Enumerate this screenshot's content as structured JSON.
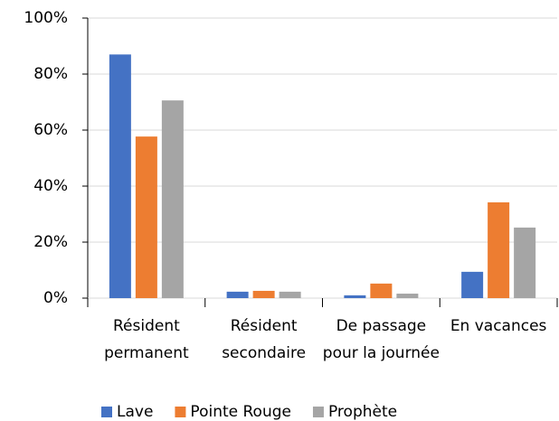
{
  "chart_data": {
    "type": "bar",
    "categories": [
      "Résident permanent",
      "Résident secondaire",
      "De passage pour la journée",
      "En vacances"
    ],
    "series": [
      {
        "name": "Lave",
        "color": "#4472c4",
        "values": [
          87,
          2.3,
          1,
          9.4
        ]
      },
      {
        "name": "Pointe Rouge",
        "color": "#ed7d31",
        "values": [
          57.7,
          2.6,
          5.2,
          34.2
        ]
      },
      {
        "name": "Prophète",
        "color": "#a5a5a5",
        "values": [
          70.6,
          2.3,
          1.6,
          25.2
        ]
      }
    ],
    "ylim": [
      0,
      100
    ],
    "yticks": [
      {
        "value": 0,
        "label": "0%"
      },
      {
        "value": 20,
        "label": "20%"
      },
      {
        "value": 40,
        "label": "40%"
      },
      {
        "value": 60,
        "label": "60%"
      },
      {
        "value": 80,
        "label": "80%"
      },
      {
        "value": 100,
        "label": "100%"
      }
    ],
    "grid": true,
    "legend": "bottom"
  }
}
